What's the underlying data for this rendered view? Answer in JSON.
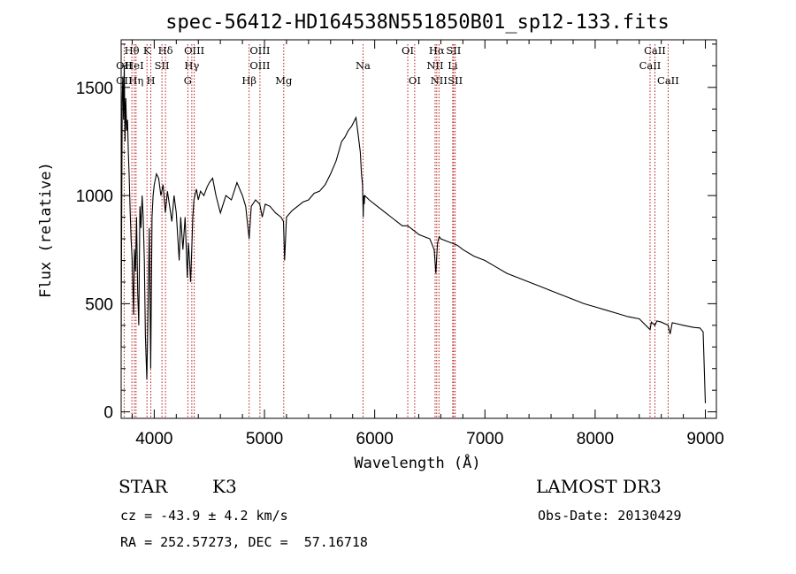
{
  "chart_data": {
    "type": "line",
    "title": "spec-56412-HD164538N551850B01_sp12-133.fits",
    "xlabel": "Wavelength (Å)",
    "ylabel": "Flux (relative)",
    "xlim": [
      3700,
      9100
    ],
    "ylim": [
      -30,
      1720
    ],
    "xticks": [
      4000,
      5000,
      6000,
      7000,
      8000,
      9000
    ],
    "yticks": [
      0,
      500,
      1000,
      1500
    ],
    "series": [
      {
        "name": "flux",
        "x": [
          3700,
          3705,
          3710,
          3715,
          3722,
          3728,
          3735,
          3742,
          3750,
          3758,
          3765,
          3772,
          3780,
          3790,
          3800,
          3812,
          3820,
          3830,
          3840,
          3850,
          3860,
          3870,
          3880,
          3890,
          3900,
          3910,
          3920,
          3933,
          3945,
          3955,
          3968,
          3980,
          3990,
          4000,
          4020,
          4040,
          4060,
          4080,
          4101,
          4120,
          4140,
          4160,
          4180,
          4200,
          4226,
          4240,
          4260,
          4280,
          4300,
          4310,
          4320,
          4330,
          4340,
          4350,
          4360,
          4383,
          4400,
          4420,
          4450,
          4480,
          4500,
          4530,
          4560,
          4600,
          4650,
          4700,
          4750,
          4800,
          4830,
          4861,
          4880,
          4920,
          4957,
          4980,
          5007,
          5050,
          5100,
          5150,
          5172,
          5183,
          5200,
          5250,
          5300,
          5350,
          5400,
          5450,
          5500,
          5550,
          5600,
          5650,
          5700,
          5730,
          5760,
          5790,
          5810,
          5830,
          5850,
          5870,
          5880,
          5890,
          5896,
          5900,
          5905,
          5910,
          5950,
          6000,
          6050,
          6100,
          6150,
          6200,
          6250,
          6300,
          6350,
          6400,
          6450,
          6500,
          6540,
          6555,
          6563,
          6570,
          6585,
          6600,
          6650,
          6700,
          6750,
          6800,
          6900,
          7000,
          7100,
          7200,
          7300,
          7400,
          7500,
          7600,
          7700,
          7800,
          7900,
          8000,
          8100,
          8200,
          8300,
          8400,
          8498,
          8510,
          8542,
          8560,
          8600,
          8662,
          8680,
          8700,
          8750,
          8800,
          8850,
          8900,
          8950,
          8980,
          8990,
          9000
        ],
        "y": [
          300,
          900,
          1450,
          1550,
          1350,
          1600,
          1250,
          1450,
          1300,
          1350,
          1200,
          1100,
          950,
          800,
          700,
          450,
          750,
          650,
          900,
          550,
          400,
          950,
          850,
          1000,
          900,
          700,
          350,
          150,
          500,
          850,
          200,
          900,
          1000,
          1050,
          1100,
          1080,
          1000,
          1050,
          920,
          1020,
          950,
          880,
          1000,
          920,
          700,
          900,
          750,
          900,
          620,
          780,
          700,
          600,
          750,
          900,
          980,
          1030,
          980,
          1020,
          1000,
          1040,
          1060,
          1080,
          1000,
          920,
          1000,
          980,
          1060,
          1000,
          950,
          800,
          950,
          980,
          960,
          900,
          960,
          950,
          920,
          900,
          880,
          700,
          900,
          930,
          950,
          970,
          980,
          1010,
          1020,
          1050,
          1100,
          1160,
          1250,
          1270,
          1300,
          1320,
          1340,
          1360,
          1280,
          1200,
          1100,
          1050,
          900,
          1000,
          960,
          1000,
          980,
          960,
          940,
          920,
          900,
          880,
          860,
          860,
          840,
          820,
          810,
          800,
          750,
          640,
          720,
          780,
          810,
          800,
          790,
          780,
          770,
          750,
          720,
          700,
          670,
          640,
          620,
          600,
          580,
          560,
          540,
          520,
          500,
          485,
          470,
          455,
          440,
          430,
          380,
          415,
          400,
          420,
          415,
          400,
          360,
          412,
          406,
          400,
          395,
          390,
          388,
          370,
          200,
          40
        ]
      }
    ],
    "line_markers": [
      {
        "label": "OII",
        "x": 3727,
        "row": 2
      },
      {
        "label": "OII",
        "x": 3727,
        "row": 3
      },
      {
        "label": "Hθ",
        "x": 3797,
        "row": 1
      },
      {
        "label": "HeI",
        "x": 3820,
        "row": 2
      },
      {
        "label": "Hη",
        "x": 3835,
        "row": 3
      },
      {
        "label": "K",
        "x": 3934,
        "row": 1
      },
      {
        "label": "SII",
        "x": 4070,
        "row": 2
      },
      {
        "label": "H",
        "x": 3969,
        "row": 3
      },
      {
        "label": "Hδ",
        "x": 4102,
        "row": 1
      },
      {
        "label": "OIII",
        "x": 4363,
        "row": 1
      },
      {
        "label": "Hγ",
        "x": 4341,
        "row": 2
      },
      {
        "label": "G",
        "x": 4305,
        "row": 3
      },
      {
        "label": "OIII",
        "x": 4959,
        "row": 1
      },
      {
        "label": "OIII",
        "x": 4959,
        "row": 2
      },
      {
        "label": "Hβ",
        "x": 4861,
        "row": 3
      },
      {
        "label": "Mg",
        "x": 5175,
        "row": 3
      },
      {
        "label": "Na",
        "x": 5894,
        "row": 2
      },
      {
        "label": "OI",
        "x": 6300,
        "row": 1
      },
      {
        "label": "OI",
        "x": 6363,
        "row": 3
      },
      {
        "label": "Hα",
        "x": 6563,
        "row": 1
      },
      {
        "label": "SII",
        "x": 6716,
        "row": 1
      },
      {
        "label": "NII",
        "x": 6548,
        "row": 2
      },
      {
        "label": "Li",
        "x": 6708,
        "row": 2
      },
      {
        "label": "NII",
        "x": 6583,
        "row": 3
      },
      {
        "label": "SII",
        "x": 6731,
        "row": 3
      },
      {
        "label": "CaII",
        "x": 8542,
        "row": 1
      },
      {
        "label": "CaII",
        "x": 8498,
        "row": 2
      },
      {
        "label": "CaII",
        "x": 8662,
        "row": 3
      }
    ],
    "marker_color": "#b00000"
  },
  "info": {
    "class_label": "STAR",
    "subclass": "K3",
    "survey": "LAMOST DR3",
    "cz": "cz = -43.9 ± 4.2 km/s",
    "obs_date": "Obs-Date: 20130429",
    "coords": "RA = 252.57273, DEC =  57.16718"
  }
}
